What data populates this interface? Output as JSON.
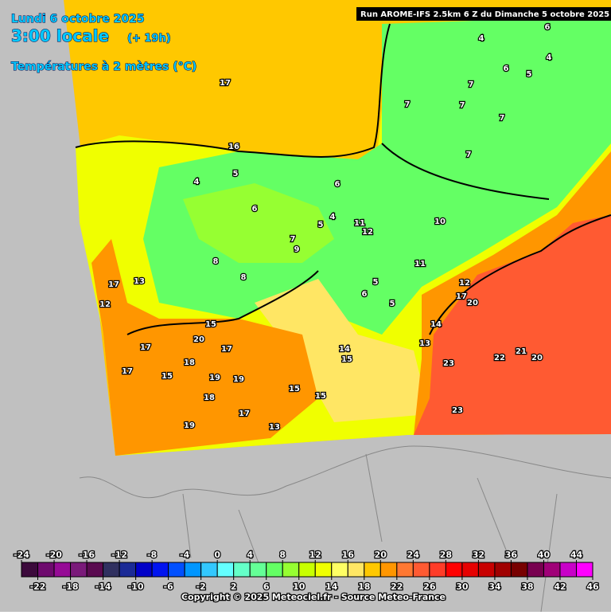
{
  "header": {
    "date": "Lundi 6 octobre 2025",
    "time": "3:00 locale",
    "lead": "(+ 19h)",
    "parameter": "Températures à 2 mètres (°C)",
    "run": "Run AROME-IFS 2.5km 6 Z du Dimanche 5 octobre 2025"
  },
  "map_labels": [
    17,
    16,
    5,
    4,
    6,
    4,
    5,
    11,
    12,
    7,
    8,
    8,
    9,
    13,
    17,
    12,
    10,
    11,
    12,
    17,
    20,
    6,
    5,
    5,
    15,
    20,
    17,
    17,
    18,
    19,
    19,
    15,
    17,
    18,
    17,
    19,
    13,
    14,
    15,
    15,
    15,
    14,
    13,
    23,
    22,
    21,
    20,
    23,
    6,
    4,
    4,
    6,
    5,
    7,
    7,
    7,
    7,
    7,
    6
  ],
  "legend": {
    "ticks": [
      -24,
      -22,
      -20,
      -18,
      -16,
      -14,
      -12,
      -10,
      -8,
      -6,
      -4,
      -2,
      0,
      2,
      4,
      6,
      8,
      10,
      12,
      14,
      16,
      18,
      20,
      22,
      24,
      26,
      28,
      30,
      32,
      34,
      36,
      38,
      40,
      42,
      44,
      46
    ],
    "colors": [
      "#3c0a3c",
      "#6e0a6e",
      "#960a96",
      "#7a1a7a",
      "#5a0a50",
      "#303060",
      "#1a2a96",
      "#0000c8",
      "#0014f0",
      "#0050ff",
      "#0096ff",
      "#32c8ff",
      "#64ffff",
      "#64ffc8",
      "#64ff96",
      "#64ff64",
      "#96ff32",
      "#c8ff00",
      "#f0ff00",
      "#ffff64",
      "#ffe664",
      "#ffc800",
      "#ff9600",
      "#ff7832",
      "#ff5a32",
      "#ff3c28",
      "#ff0000",
      "#e60000",
      "#c80000",
      "#a00000",
      "#780000",
      "#780050",
      "#a00078",
      "#c800c8",
      "#ff00ff",
      "#ff96ff"
    ]
  },
  "footer": {
    "copyright": "Copyright © 2025 Meteociel.fr - Source Meteo-France"
  }
}
